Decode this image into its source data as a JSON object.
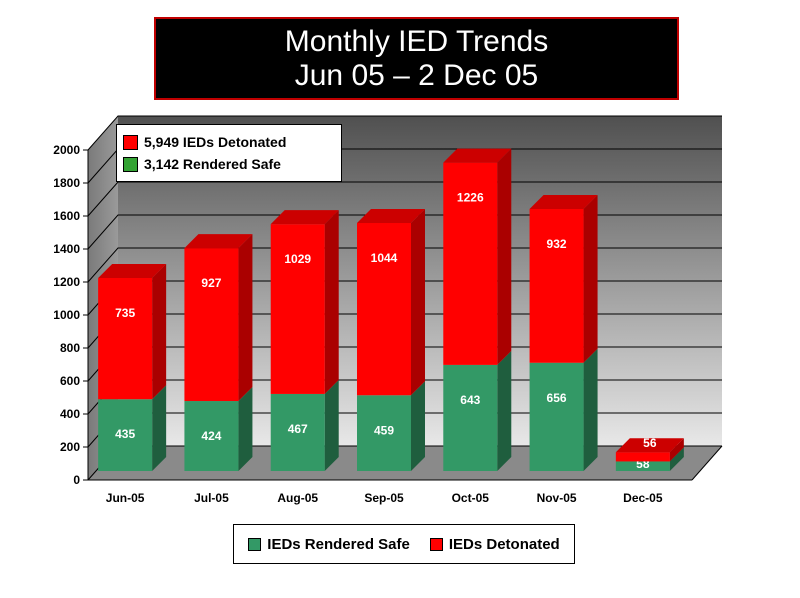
{
  "title": {
    "line1": "Monthly IED Trends",
    "line2": "Jun 05 – 2 Dec 05"
  },
  "colors": {
    "detonated": "#ff0000",
    "rendered_safe": "#339966",
    "rendered_safe_legend": "#33a333"
  },
  "inner_legend": [
    {
      "label": "5,949 IEDs Detonated",
      "color": "#ff0000"
    },
    {
      "label": "3,142 Rendered Safe",
      "color": "#33a333"
    }
  ],
  "bottom_legend": [
    {
      "label": "IEDs Rendered Safe",
      "color": "#339966"
    },
    {
      "label": "IEDs Detonated",
      "color": "#ff0000"
    }
  ],
  "chart_data": {
    "type": "bar",
    "stacked": true,
    "categories": [
      "Jun-05",
      "Jul-05",
      "Aug-05",
      "Sep-05",
      "Oct-05",
      "Nov-05",
      "Dec-05"
    ],
    "series": [
      {
        "name": "IEDs Rendered Safe",
        "values": [
          435,
          424,
          467,
          459,
          643,
          656,
          58
        ]
      },
      {
        "name": "IEDs Detonated",
        "values": [
          735,
          927,
          1029,
          1044,
          1226,
          932,
          56
        ]
      }
    ],
    "ylim": [
      0,
      2000
    ],
    "yticks": [
      0,
      200,
      400,
      600,
      800,
      1000,
      1200,
      1400,
      1600,
      1800,
      2000
    ],
    "grid": true,
    "three_d": true
  }
}
